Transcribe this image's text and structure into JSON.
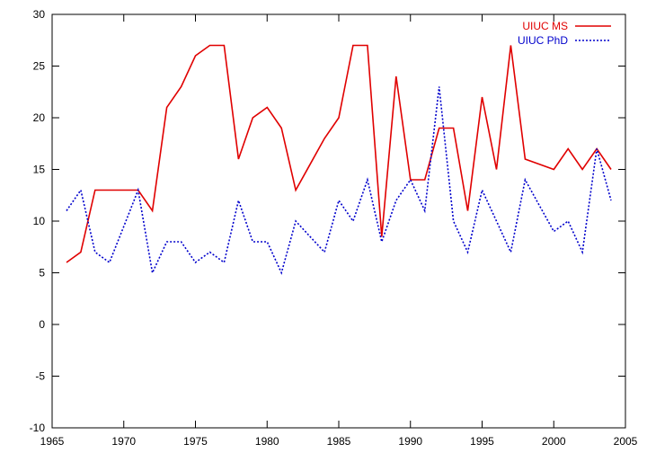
{
  "chart_data": {
    "type": "line",
    "title": "",
    "xlabel": "",
    "ylabel": "",
    "xlim": [
      1965,
      2005
    ],
    "ylim": [
      -10,
      30
    ],
    "xticks": [
      1965,
      1970,
      1975,
      1980,
      1985,
      1990,
      1995,
      2000,
      2005
    ],
    "yticks": [
      -10,
      -5,
      0,
      5,
      10,
      15,
      20,
      25,
      30
    ],
    "grid": false,
    "legend_position": "top-right",
    "series": [
      {
        "name": "UIUC MS",
        "color": "#e00000",
        "style": "solid",
        "x": [
          1966,
          1967,
          1968,
          1969,
          1970,
          1971,
          1972,
          1973,
          1974,
          1975,
          1976,
          1977,
          1978,
          1979,
          1980,
          1981,
          1982,
          1983,
          1984,
          1985,
          1986,
          1987,
          1988,
          1989,
          1990,
          1991,
          1992,
          1993,
          1994,
          1995,
          1996,
          1997,
          1998,
          1999,
          2000,
          2001,
          2002,
          2003,
          2004
        ],
        "y": [
          6,
          7,
          13,
          13,
          13,
          13,
          11,
          21,
          23,
          26,
          27,
          27,
          16,
          20,
          21,
          19,
          13,
          15.5,
          18,
          20,
          27,
          27,
          8.5,
          24,
          14,
          14,
          19,
          19,
          11,
          22,
          15,
          27,
          16,
          15.5,
          15,
          17,
          15,
          17,
          15
        ]
      },
      {
        "name": "UIUC PhD",
        "color": "#0000cc",
        "style": "dotted",
        "x": [
          1966,
          1967,
          1968,
          1969,
          1970,
          1971,
          1972,
          1973,
          1974,
          1975,
          1976,
          1977,
          1978,
          1979,
          1980,
          1981,
          1982,
          1983,
          1984,
          1985,
          1986,
          1987,
          1988,
          1989,
          1990,
          1991,
          1992,
          1993,
          1994,
          1995,
          1996,
          1997,
          1998,
          1999,
          2000,
          2001,
          2002,
          2003,
          2004
        ],
        "y": [
          11,
          13,
          7,
          6,
          9.5,
          13,
          5,
          8,
          8,
          6,
          7,
          6,
          12,
          8,
          8,
          5,
          10,
          8.5,
          7,
          12,
          10,
          14,
          8,
          12,
          14,
          11,
          23,
          10,
          7,
          13,
          10,
          7,
          14,
          11.5,
          9,
          10,
          7,
          17,
          12
        ]
      }
    ]
  }
}
